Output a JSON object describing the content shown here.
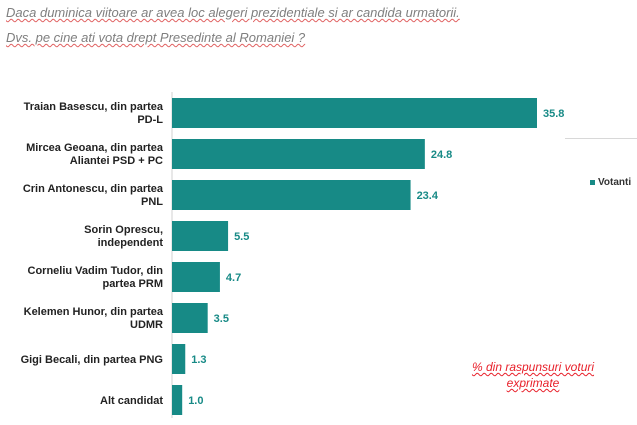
{
  "question_line1": "Daca duminica viitoare ar avea loc alegeri prezidentiale si ar candida urmatorii.",
  "question_line2": "Dvs. pe cine ati vota drept Presedinte al Romaniei ?",
  "legend_label": "Votanti",
  "note_line1": "% din raspunsuri voturi",
  "note_line2": "exprimate",
  "colors": {
    "bar": "#178a86",
    "value_text": "#178a86",
    "note": "#e8202a"
  },
  "chart_data": {
    "type": "bar",
    "orientation": "horizontal",
    "categories": [
      [
        "Traian Basescu, din partea",
        "PD-L"
      ],
      [
        "Mircea Geoana,  din partea",
        "Aliantei PSD + PC"
      ],
      [
        "Crin Antonescu, din partea",
        "PNL"
      ],
      [
        "Sorin Oprescu,",
        "independent"
      ],
      [
        "Corneliu Vadim Tudor, din",
        "partea PRM"
      ],
      [
        "Kelemen Hunor, din partea",
        "UDMR"
      ],
      [
        "Gigi Becali, din partea PNG"
      ],
      [
        "Alt candidat"
      ]
    ],
    "series": [
      {
        "name": "Votanti",
        "values": [
          35.8,
          24.8,
          23.4,
          5.5,
          4.7,
          3.5,
          1.3,
          1.0
        ]
      }
    ],
    "value_labels": [
      "35.8",
      "24.8",
      "23.4",
      "5.5",
      "4.7",
      "3.5",
      "1.3",
      "1.0"
    ],
    "xlim": [
      0,
      36
    ],
    "legend_position": "right",
    "grid": false
  }
}
